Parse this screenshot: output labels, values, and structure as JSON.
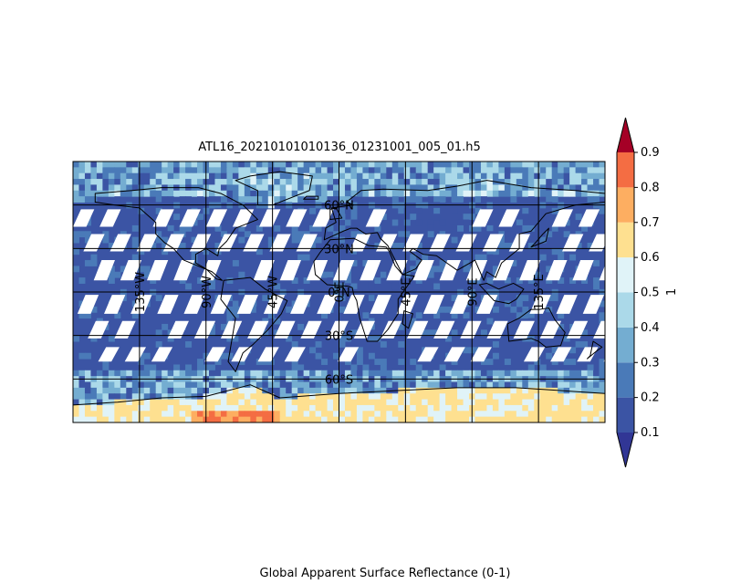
{
  "chart_data": {
    "type": "heatmap",
    "title": "ATL16_20210101010136_01231001_005_01.h5",
    "caption": "Global Apparent Surface Reflectance (0-1)",
    "projection": "equirectangular",
    "lon_range": [
      -180,
      180
    ],
    "lat_range": [
      -90,
      90
    ],
    "gridlines": {
      "lon": [
        -135,
        -90,
        -45,
        0,
        45,
        90,
        135
      ],
      "lat": [
        -60,
        -30,
        0,
        30,
        60
      ],
      "lon_labels": [
        "135°W",
        "90°W",
        "45°W",
        "0°E",
        "45°E",
        "90°E",
        "135°E"
      ],
      "lat_labels": [
        "60°S",
        "30°S",
        "0°N",
        "30°N",
        "60°N"
      ]
    },
    "colorbar": {
      "label": "1",
      "ticks": [
        0.1,
        0.2,
        0.3,
        0.4,
        0.5,
        0.6,
        0.7,
        0.8,
        0.9
      ],
      "tick_labels": [
        "0.1",
        "0.2",
        "0.3",
        "0.4",
        "0.5",
        "0.6",
        "0.7",
        "0.8",
        "0.9"
      ],
      "extend": "both",
      "colors": [
        "#3b54a4",
        "#4a7ab8",
        "#74add1",
        "#abd9e9",
        "#e0f3f8",
        "#fee090",
        "#fdae61",
        "#f46d43",
        "#d73027"
      ],
      "under_color": "#313695",
      "over_color": "#a50026",
      "nodata_color": "#ffffff"
    },
    "summary": {
      "ocean_typical": 0.1,
      "high_latitude_north": 0.3,
      "antarctica_typical": 0.65,
      "antarctica_max": 0.85
    }
  }
}
